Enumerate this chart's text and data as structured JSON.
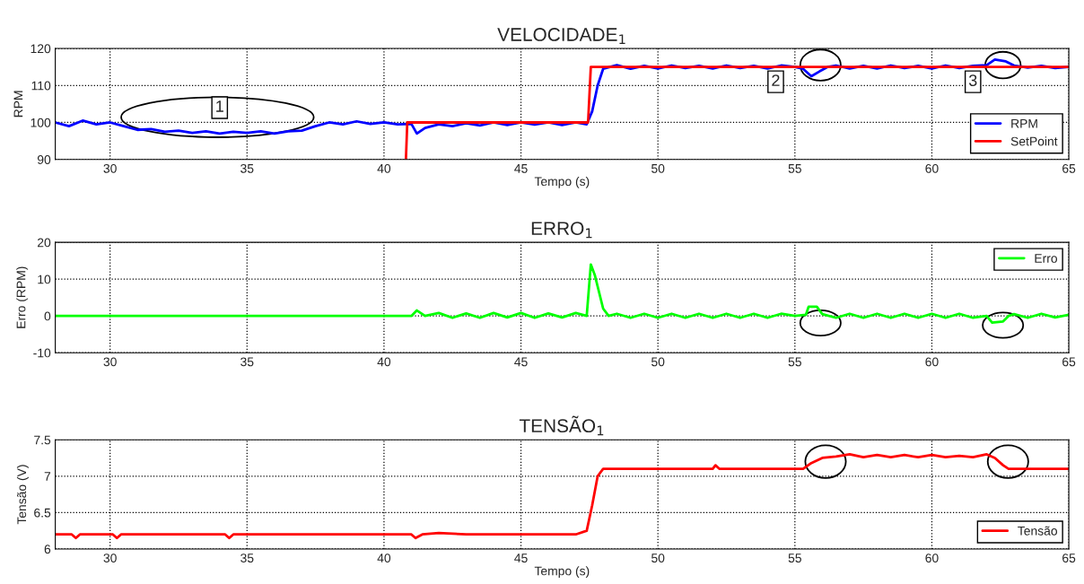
{
  "chart_data": [
    {
      "type": "line",
      "title": "VELOCIDADE$_{1}$",
      "xlabel": "Tempo (s)",
      "ylabel": "RPM",
      "xlim": [
        28,
        65
      ],
      "xticks": [
        30,
        35,
        40,
        45,
        50,
        55,
        60,
        65
      ],
      "ylim": [
        90,
        120
      ],
      "yticks": [
        90,
        100,
        110,
        120
      ],
      "grid": true,
      "legend": "bottom right",
      "series": [
        {
          "name": "RPM",
          "color": "#0000ff",
          "x": [
            28,
            28.5,
            29,
            29.5,
            30,
            30.5,
            31,
            31.5,
            32,
            32.5,
            33,
            33.5,
            34,
            34.5,
            35,
            35.5,
            36,
            36.5,
            37,
            37.5,
            38,
            38.5,
            39,
            39.5,
            40,
            40.5,
            41,
            41.2,
            41.5,
            42,
            42.5,
            43,
            43.5,
            44,
            44.5,
            45,
            45.5,
            46,
            46.5,
            47,
            47.4,
            47.6,
            47.8,
            48,
            48.5,
            49,
            49.5,
            50,
            50.5,
            51,
            51.5,
            52,
            52.5,
            53,
            53.5,
            54,
            54.5,
            55,
            55.3,
            55.6,
            55.9,
            56.2,
            56.5,
            57,
            57.5,
            58,
            58.5,
            59,
            59.5,
            60,
            60.5,
            61,
            61.5,
            62,
            62.3,
            62.7,
            63,
            63.5,
            64,
            64.5,
            65
          ],
          "values": [
            100,
            99,
            100.5,
            99.5,
            100,
            99,
            98,
            98.2,
            97.5,
            97.8,
            97.2,
            97.6,
            97,
            97.5,
            97.2,
            97.6,
            97,
            97.6,
            97.8,
            99,
            100,
            99.5,
            100.3,
            99.6,
            100,
            99.5,
            99.6,
            97,
            98.5,
            99.5,
            99,
            99.8,
            99.2,
            100,
            99.3,
            100,
            99.4,
            100,
            99.3,
            100,
            99.5,
            103,
            110,
            114.5,
            115.5,
            114.5,
            115.3,
            114.6,
            115.4,
            114.7,
            115.3,
            114.6,
            115.4,
            114.7,
            115.3,
            114.6,
            115.4,
            115,
            114.5,
            112.5,
            113.8,
            115,
            115.4,
            114.6,
            115.3,
            114.6,
            115.4,
            114.7,
            115.3,
            114.6,
            115.4,
            114.7,
            115.3,
            115.5,
            117,
            116.5,
            115.4,
            114.8,
            115.3,
            114.7,
            115
          ]
        },
        {
          "name": "SetPoint",
          "color": "#ff0000",
          "x": [
            40.8,
            40.85,
            47.45,
            47.55,
            65
          ],
          "values": [
            90,
            100,
            100,
            115,
            115
          ]
        }
      ],
      "annotations": [
        {
          "text": "1",
          "x": 34,
          "y": 104
        },
        {
          "text": "2",
          "x": 54.3,
          "y": 111
        },
        {
          "text": "3",
          "x": 61.5,
          "y": 111
        }
      ]
    },
    {
      "type": "line",
      "title": "ERRO$_{1}$",
      "ylabel": "Erro (RPM)",
      "xlim": [
        28,
        65
      ],
      "xticks": [
        30,
        35,
        40,
        45,
        50,
        55,
        60,
        65
      ],
      "ylim": [
        -10,
        20
      ],
      "yticks": [
        -10,
        0,
        10,
        20
      ],
      "grid": true,
      "legend": "top right",
      "series": [
        {
          "name": "Erro",
          "color": "#00ff00",
          "x": [
            28,
            41,
            41.2,
            41.5,
            42,
            42.5,
            43,
            43.5,
            44,
            44.5,
            45,
            45.5,
            46,
            46.5,
            47,
            47.4,
            47.55,
            47.7,
            48,
            48.2,
            48.5,
            49,
            49.5,
            50,
            50.5,
            51,
            51.5,
            52,
            52.5,
            53,
            53.5,
            54,
            54.5,
            55,
            55.4,
            55.5,
            55.8,
            56,
            56.5,
            57,
            57.5,
            58,
            58.5,
            59,
            59.5,
            60,
            60.5,
            61,
            61.5,
            62,
            62.2,
            62.6,
            62.8,
            63,
            63.5,
            64,
            64.5,
            65
          ],
          "values": [
            0,
            0,
            1.5,
            0,
            0.8,
            -0.5,
            0.7,
            -0.5,
            0.8,
            -0.4,
            0.8,
            -0.5,
            0.7,
            -0.4,
            0.8,
            0,
            14,
            11,
            2,
            0,
            0.6,
            -0.5,
            0.6,
            -0.5,
            0.6,
            -0.5,
            0.6,
            -0.5,
            0.6,
            -0.5,
            0.6,
            -0.5,
            0.6,
            0,
            0.3,
            2.5,
            2.5,
            0.5,
            -0.5,
            0.6,
            -0.5,
            0.6,
            -0.5,
            0.6,
            -0.5,
            0.6,
            -0.5,
            0.6,
            -0.5,
            0,
            -1.8,
            -1.5,
            0,
            0.5,
            -0.5,
            0.6,
            -0.4,
            0.3
          ]
        }
      ]
    },
    {
      "type": "line",
      "title": "TENSÃO$_{1}$",
      "xlabel": "Tempo (s)",
      "ylabel": "Tensão (V)",
      "xlim": [
        28,
        65
      ],
      "xticks": [
        30,
        35,
        40,
        45,
        50,
        55,
        60,
        65
      ],
      "ylim": [
        6,
        7.5
      ],
      "yticks": [
        6,
        6.5,
        7,
        7.5
      ],
      "grid": true,
      "legend": "bottom right",
      "series": [
        {
          "name": "Tensão",
          "color": "#ff0000",
          "x": [
            28,
            28.6,
            28.75,
            28.9,
            30.1,
            30.25,
            30.4,
            34.2,
            34.35,
            34.5,
            41,
            41.15,
            41.4,
            42,
            43,
            44,
            45,
            46,
            47,
            47.4,
            47.6,
            47.8,
            48,
            50,
            52,
            52.1,
            52.25,
            54,
            55.3,
            55.6,
            56,
            56.5,
            57,
            57.5,
            58,
            58.5,
            59,
            59.5,
            60,
            60.5,
            61,
            61.5,
            62,
            62.3,
            62.6,
            62.8,
            65
          ],
          "values": [
            6.2,
            6.2,
            6.15,
            6.2,
            6.2,
            6.15,
            6.2,
            6.2,
            6.15,
            6.2,
            6.2,
            6.15,
            6.2,
            6.22,
            6.2,
            6.2,
            6.2,
            6.2,
            6.2,
            6.25,
            6.6,
            7.0,
            7.1,
            7.1,
            7.1,
            7.15,
            7.1,
            7.1,
            7.1,
            7.18,
            7.25,
            7.27,
            7.3,
            7.26,
            7.29,
            7.26,
            7.29,
            7.26,
            7.29,
            7.26,
            7.28,
            7.26,
            7.3,
            7.25,
            7.15,
            7.1,
            7.1
          ]
        }
      ]
    }
  ]
}
